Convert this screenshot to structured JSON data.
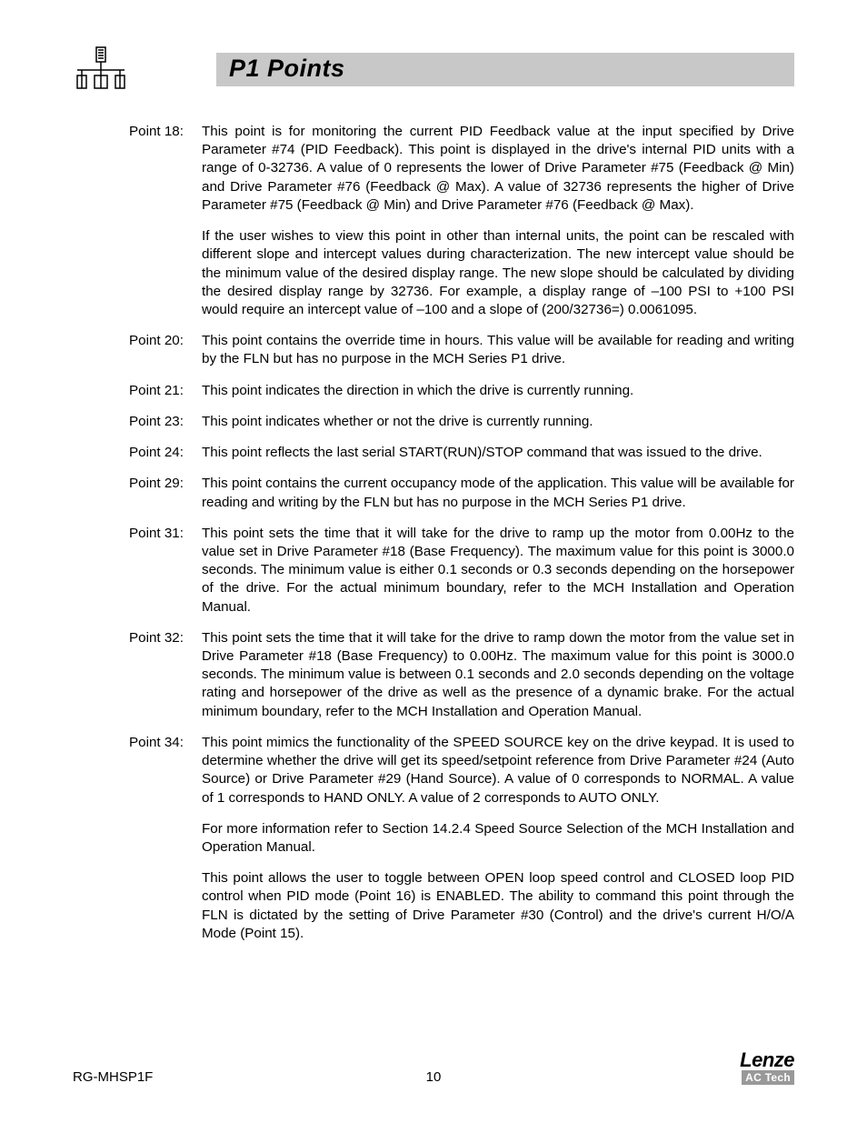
{
  "header": {
    "title": "P1 Points"
  },
  "points": [
    {
      "label": "Point 18:",
      "paragraphs": [
        "This point is for monitoring the current PID Feedback value at the input specified by Drive Parameter #74 (PID Feedback). This point is displayed in the drive's internal PID units with a range of 0-32736. A value of 0 represents the lower of Drive Parameter #75 (Feedback @ Min) and Drive Parameter #76 (Feedback @ Max). A value of 32736 represents the higher of Drive Parameter #75 (Feedback @ Min) and Drive Parameter #76 (Feedback @ Max).",
        "If the user wishes to view this point in other than internal units, the point can be rescaled with different slope and intercept values during characterization. The new intercept value should be the minimum value of the desired display range. The new slope should be calculated by dividing the desired display range by 32736. For example, a display range of –100 PSI to +100 PSI would require an intercept value of –100 and a slope of (200/32736=) 0.0061095."
      ]
    },
    {
      "label": "Point 20:",
      "paragraphs": [
        "This point contains the override time in hours. This value will be available for reading and writing by the FLN but has no purpose in the MCH Series P1 drive."
      ]
    },
    {
      "label": "Point 21:",
      "paragraphs": [
        "This point indicates the direction in which the drive is currently running."
      ]
    },
    {
      "label": "Point 23:",
      "paragraphs": [
        "This point indicates whether or not the drive is currently running."
      ]
    },
    {
      "label": "Point 24:",
      "paragraphs": [
        "This point reflects the last serial START(RUN)/STOP command that was issued to the drive."
      ]
    },
    {
      "label": "Point 29:",
      "paragraphs": [
        "This point contains the current occupancy mode of the application. This value will be available for reading and writing by the FLN but has no purpose in the MCH Series P1 drive."
      ]
    },
    {
      "label": "Point 31:",
      "paragraphs": [
        "This point sets the time that it will take for the drive to ramp up the motor from 0.00Hz to the value set in Drive Parameter #18 (Base Frequency). The maximum value for this point is 3000.0 seconds. The minimum value is either 0.1 seconds or 0.3 seconds depending on the horsepower of the drive. For the actual minimum boundary, refer to the MCH Installation and Operation Manual."
      ]
    },
    {
      "label": "Point 32:",
      "paragraphs": [
        "This point sets the time that it will take for the drive to ramp down the motor from the value set in Drive Parameter #18 (Base Frequency) to 0.00Hz. The maximum value for this point is 3000.0 seconds. The minimum value is between 0.1 seconds and 2.0 seconds depending on the voltage rating and horsepower of the drive as well as the presence of a dynamic brake. For the actual minimum boundary, refer to the MCH Installation and Operation Manual."
      ]
    },
    {
      "label": "Point 34:",
      "paragraphs": [
        "This point mimics the functionality of the SPEED SOURCE key on the drive keypad. It is used to determine whether the drive will get its speed/setpoint reference from Drive Parameter #24 (Auto Source) or Drive Parameter #29 (Hand Source). A value of 0 corresponds to NORMAL. A value of 1 corresponds to HAND ONLY. A value of 2 corresponds to AUTO ONLY.",
        "For more information refer to Section 14.2.4 Speed Source Selection of the MCH Installation and Operation Manual.",
        "This point allows the user to toggle between OPEN loop speed control and CLOSED loop PID control when PID mode (Point 16) is ENABLED. The ability to command this point through the FLN is dictated by the setting of Drive Parameter #30 (Control) and the drive's current H/O/A Mode (Point 15)."
      ]
    }
  ],
  "footer": {
    "doc_id": "RG-MHSP1F",
    "page_number": "10",
    "brand_name": "Lenze",
    "brand_sub": "AC Tech"
  }
}
